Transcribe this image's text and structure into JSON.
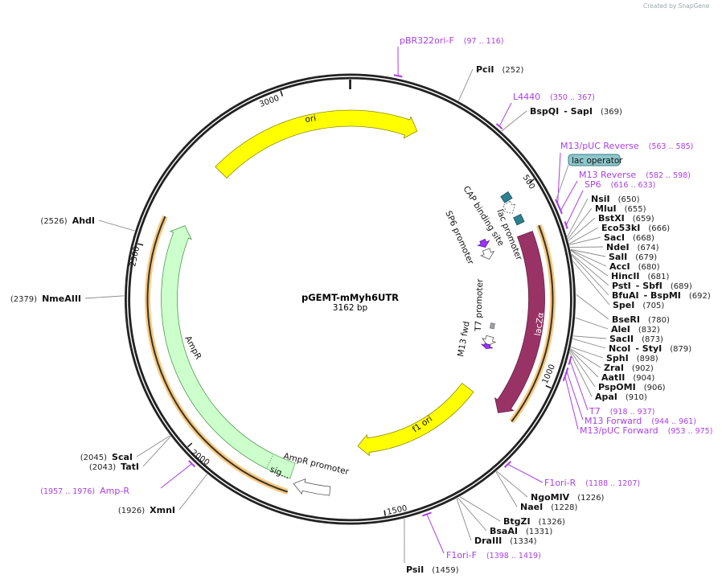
{
  "watermark": "Created by SnapGene",
  "plasmid": {
    "name": "pGEMT-mMyh6UTR",
    "length_label": "3162 bp",
    "length": 3162
  },
  "ticks": [
    {
      "bp": 500,
      "label": "500"
    },
    {
      "bp": 1000,
      "label": "1000"
    },
    {
      "bp": 1500,
      "label": "1500"
    },
    {
      "bp": 2000,
      "label": "2000"
    },
    {
      "bp": 2500,
      "label": "2500"
    },
    {
      "bp": 3000,
      "label": "3000"
    }
  ],
  "enzymes": [
    {
      "name": "PciI",
      "pos": "(252)",
      "bp": 252
    },
    {
      "name": "BspQI",
      "name2": "SapI",
      "pos": "(369)",
      "bp": 369
    },
    {
      "name": "NsiI",
      "pos": "(650)",
      "bp": 650
    },
    {
      "name": "MluI",
      "pos": "(655)",
      "bp": 655
    },
    {
      "name": "BstXI",
      "pos": "(659)",
      "bp": 659
    },
    {
      "name": "Eco53kI",
      "pos": "(666)",
      "bp": 666
    },
    {
      "name": "SacI",
      "pos": "(668)",
      "bp": 668
    },
    {
      "name": "NdeI",
      "pos": "(674)",
      "bp": 674
    },
    {
      "name": "SalI",
      "pos": "(679)",
      "bp": 679
    },
    {
      "name": "AccI",
      "pos": "(680)",
      "bp": 680
    },
    {
      "name": "HincII",
      "pos": "(681)",
      "bp": 681
    },
    {
      "name": "PstI",
      "name2": "SbfI",
      "pos": "(689)",
      "bp": 689
    },
    {
      "name": "BfuAI",
      "name2": "BspMI",
      "pos": "(692)",
      "bp": 692
    },
    {
      "name": "SpeI",
      "pos": "(705)",
      "bp": 705
    },
    {
      "name": "BseRI",
      "pos": "(780)",
      "bp": 780
    },
    {
      "name": "AleI",
      "pos": "(832)",
      "bp": 832
    },
    {
      "name": "SacII",
      "pos": "(873)",
      "bp": 873
    },
    {
      "name": "NcoI",
      "name2": "StyI",
      "pos": "(879)",
      "bp": 879
    },
    {
      "name": "SphI",
      "pos": "(898)",
      "bp": 898
    },
    {
      "name": "ZraI",
      "pos": "(902)",
      "bp": 902
    },
    {
      "name": "AatII",
      "pos": "(904)",
      "bp": 904
    },
    {
      "name": "PspOMI",
      "pos": "(906)",
      "bp": 906
    },
    {
      "name": "ApaI",
      "pos": "(910)",
      "bp": 910
    },
    {
      "name": "NgoMIV",
      "pos": "(1226)",
      "bp": 1226
    },
    {
      "name": "NaeI",
      "pos": "(1228)",
      "bp": 1228
    },
    {
      "name": "BtgZI",
      "pos": "(1326)",
      "bp": 1326
    },
    {
      "name": "BsaAI",
      "pos": "(1331)",
      "bp": 1331
    },
    {
      "name": "DraIII",
      "pos": "(1334)",
      "bp": 1334
    },
    {
      "name": "PsiI",
      "pos": "(1459)",
      "bp": 1459
    },
    {
      "name": "XmnI",
      "pos": "(1926)",
      "bp": 1926
    },
    {
      "name": "TatI",
      "pos": "(2043)",
      "bp": 2043
    },
    {
      "name": "ScaI",
      "pos": "(2045)",
      "bp": 2045
    },
    {
      "name": "NmeAIII",
      "pos": "(2379)",
      "bp": 2379
    },
    {
      "name": "AhdI",
      "pos": "(2526)",
      "bp": 2526
    }
  ],
  "primers": [
    {
      "name": "pBR322ori-F",
      "range": "(97 .. 116)",
      "start": 97,
      "end": 116
    },
    {
      "name": "L4440",
      "range": "(350 .. 367)",
      "start": 350,
      "end": 367
    },
    {
      "name": "M13/pUC Reverse",
      "range": "(563 .. 585)",
      "start": 563,
      "end": 585
    },
    {
      "name": "M13 Reverse",
      "range": "(582 .. 598)",
      "start": 582,
      "end": 598
    },
    {
      "name": "SP6",
      "range": "(616 .. 633)",
      "start": 616,
      "end": 633
    },
    {
      "name": "T7",
      "range": "(918 .. 937)",
      "start": 918,
      "end": 937
    },
    {
      "name": "M13 Forward",
      "range": "(944 .. 961)",
      "start": 944,
      "end": 961
    },
    {
      "name": "M13/pUC Forward",
      "range": "(953 .. 975)",
      "start": 953,
      "end": 975
    },
    {
      "name": "F1ori-R",
      "range": "(1188 .. 1207)",
      "start": 1188,
      "end": 1207
    },
    {
      "name": "F1ori-F",
      "range": "(1398 .. 1419)",
      "start": 1398,
      "end": 1419
    },
    {
      "name": "Amp-R",
      "range": "(1957 .. 1976)",
      "start": 1957,
      "end": 1976
    }
  ],
  "features": [
    {
      "name": "ori",
      "start": 2762,
      "end": 191,
      "fill": "#ffff00",
      "stroke": "#8a8a00"
    },
    {
      "name": "lacZα",
      "start": 611,
      "end": 1120,
      "fill": "#993366",
      "stroke": "#6a2046"
    },
    {
      "name": "f1 ori",
      "start": 1115,
      "end": 1555,
      "fill": "#ffff00",
      "stroke": "#8a8a00"
    },
    {
      "name": "AmpR",
      "start": 1744,
      "end": 2582,
      "fill": "#ccffcc",
      "stroke": "#4e9a4e"
    },
    {
      "name": "sig…",
      "start": 1744,
      "end": 1812,
      "fill": "#ccffcc",
      "stroke": "#4e9a4e"
    },
    {
      "name": "AmpR promoter",
      "start": 1634,
      "end": 1731,
      "fill": "#ffffff",
      "stroke": "#555555"
    },
    {
      "name": "CAP binding site",
      "start": 490,
      "end": 510,
      "fill": "#2e7f8f",
      "stroke": "#1d5560"
    },
    {
      "name": "lac promoter",
      "start": 514,
      "end": 546,
      "fill": "#ffffff",
      "stroke": "#555555"
    },
    {
      "name": "lac operator",
      "start": 558,
      "end": 580,
      "fill": "#2e7f8f",
      "stroke": "#1d5560"
    },
    {
      "name": "SP6 promoter",
      "start": 615,
      "end": 650,
      "fill": "#ffffff",
      "stroke": "#555555"
    },
    {
      "name": "SP6 primer",
      "start": 580,
      "end": 606,
      "fill": "#9933ff",
      "stroke": "#5a1a99"
    },
    {
      "name": "T7 promoter",
      "start": 922,
      "end": 955,
      "fill": "#ffffff",
      "stroke": "#555555"
    },
    {
      "name": "T7 site",
      "start": 875,
      "end": 893,
      "fill": "#a0a0a8",
      "stroke": "#777"
    },
    {
      "name": "M13 fwd",
      "start": 950,
      "end": 966,
      "fill": "#9933ff",
      "stroke": "#5a1a99"
    }
  ],
  "orfs": [
    {
      "name": "lacZα ORF",
      "start": 603,
      "end": 1117
    },
    {
      "name": "AmpR ORF",
      "start": 1739,
      "end": 2583
    }
  ],
  "colors": {
    "orf_glow": "#fbc87a",
    "primer": "#a93fe6",
    "lac_operator_box": "#8fc6cc"
  }
}
